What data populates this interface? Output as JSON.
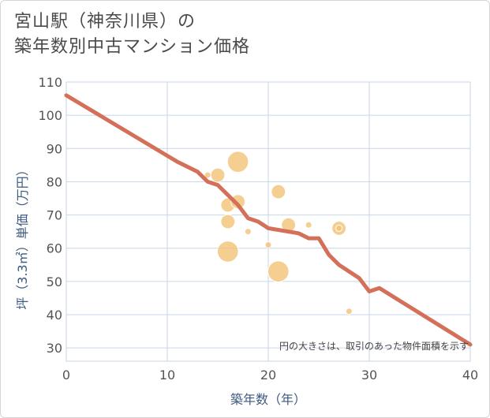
{
  "title": {
    "line1": "宮山駅（神奈川県）の",
    "line2": "築年数別中古マンション価格"
  },
  "colors": {
    "line": "#d4705a",
    "bubble": "#f2c173",
    "grid": "#c7d6e6",
    "axis_text": "#3d5a80"
  },
  "chart_data": {
    "type": "scatter",
    "title": "宮山駅（神奈川県）の築年数別中古マンション価格",
    "xlabel": "築年数（年）",
    "ylabel": "坪（3.3㎡）単価（万円）",
    "xlim": [
      0,
      40
    ],
    "ylim": [
      26,
      110
    ],
    "x_ticks": [
      0,
      10,
      20,
      30,
      40
    ],
    "y_ticks": [
      30,
      40,
      50,
      60,
      70,
      80,
      90,
      100,
      110
    ],
    "note": "円の大きさは、取引のあった物件面積を示す",
    "bubbles": [
      {
        "x": 14,
        "y": 82,
        "size": 1
      },
      {
        "x": 15,
        "y": 82,
        "size": 3
      },
      {
        "x": 16,
        "y": 73,
        "size": 3
      },
      {
        "x": 16,
        "y": 68,
        "size": 3
      },
      {
        "x": 16,
        "y": 59,
        "size": 8
      },
      {
        "x": 17,
        "y": 86,
        "size": 8
      },
      {
        "x": 17,
        "y": 74,
        "size": 3
      },
      {
        "x": 18,
        "y": 65,
        "size": 1
      },
      {
        "x": 20,
        "y": 61,
        "size": 1
      },
      {
        "x": 21,
        "y": 77,
        "size": 3
      },
      {
        "x": 21,
        "y": 53,
        "size": 8
      },
      {
        "x": 22,
        "y": 67,
        "size": 3
      },
      {
        "x": 24,
        "y": 67,
        "size": 1
      },
      {
        "x": 27,
        "y": 66,
        "size": 3
      },
      {
        "x": 27,
        "y": 66,
        "size": 1
      },
      {
        "x": 28,
        "y": 41,
        "size": 1
      }
    ],
    "trend_line": {
      "x": [
        0,
        11,
        13,
        14,
        15,
        17,
        18,
        19,
        20,
        23,
        24,
        25,
        26,
        27,
        29,
        30,
        31,
        40
      ],
      "y": [
        106,
        86,
        83,
        80,
        79,
        73,
        69,
        68,
        66,
        64.5,
        63,
        63,
        58,
        55,
        51,
        47,
        48,
        31
      ]
    }
  }
}
